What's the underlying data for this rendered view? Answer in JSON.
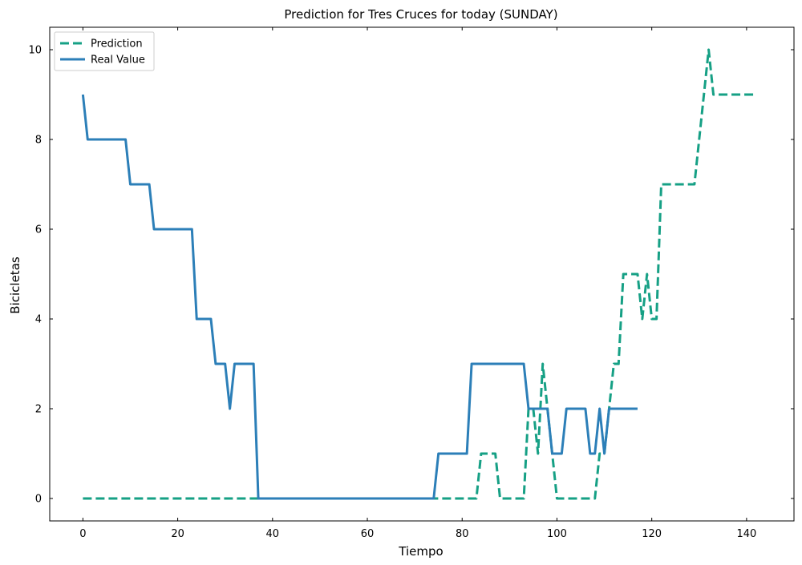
{
  "chart_data": {
    "type": "line",
    "title": "Prediction for Tres Cruces for today (SUNDAY)",
    "xlabel": "Tiempo",
    "ylabel": "Bicicletas",
    "xlim": [
      -7,
      150
    ],
    "ylim": [
      -0.5,
      10.5
    ],
    "xticks": [
      0,
      20,
      40,
      60,
      80,
      100,
      120,
      140
    ],
    "yticks": [
      0,
      2,
      4,
      6,
      8,
      10
    ],
    "grid": false,
    "legend_position": "upper-left",
    "series": [
      {
        "name": "Prediction",
        "color": "#16a085",
        "style": "dashed",
        "x": [
          0,
          83,
          84,
          87,
          88,
          93,
          94,
          95,
          96,
          97,
          98,
          99,
          100,
          108,
          109,
          110,
          111,
          112,
          113,
          114,
          115,
          117,
          118,
          119,
          120,
          121,
          122,
          129,
          131,
          132,
          133,
          134,
          142
        ],
        "y": [
          0,
          0,
          1,
          1,
          0,
          0,
          2,
          2,
          1,
          3,
          2,
          1,
          0,
          0,
          1,
          1,
          2,
          3,
          3,
          5,
          5,
          5,
          4,
          5,
          4,
          4,
          7,
          7,
          9,
          10,
          9,
          9,
          9
        ]
      },
      {
        "name": "Real Value",
        "color": "#2c7fb8",
        "style": "solid",
        "x": [
          0,
          1,
          9,
          10,
          14,
          15,
          23,
          24,
          27,
          28,
          30,
          31,
          32,
          36,
          37,
          74,
          75,
          81,
          82,
          93,
          94,
          98,
          99,
          100,
          101,
          102,
          106,
          107,
          108,
          109,
          110,
          111,
          117
        ],
        "y": [
          9,
          8,
          8,
          7,
          7,
          6,
          6,
          4,
          4,
          3,
          3,
          2,
          3,
          3,
          0,
          0,
          1,
          1,
          3,
          3,
          2,
          2,
          1,
          1,
          1,
          2,
          2,
          1,
          1,
          2,
          1,
          2,
          2
        ]
      }
    ]
  }
}
